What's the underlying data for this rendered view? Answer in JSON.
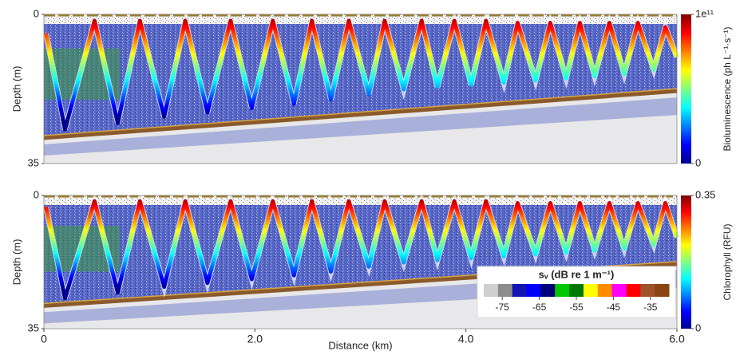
{
  "chart_data": [
    {
      "type": "echogram",
      "ylabel": "Depth (m)",
      "ylim": [
        0,
        35
      ],
      "yticks": [
        0,
        35
      ],
      "y_inverted": true,
      "xlim": [
        0,
        6
      ],
      "track": {
        "x": [
          0.02,
          0.2,
          0.48,
          0.7,
          0.91,
          1.14,
          1.34,
          1.55,
          1.77,
          1.97,
          2.17,
          2.37,
          2.54,
          2.72,
          2.89,
          3.08,
          3.23,
          3.41,
          3.58,
          3.73,
          3.89,
          4.05,
          4.19,
          4.36,
          4.49,
          4.66,
          4.8,
          4.95,
          5.08,
          5.22,
          5.36,
          5.5,
          5.63,
          5.78,
          5.89,
          6.0
        ],
        "depth": [
          4.5,
          27,
          1.5,
          25.5,
          1.5,
          24,
          1.5,
          23,
          1.5,
          22,
          1.5,
          21,
          1.5,
          20,
          1.5,
          18.7,
          1.5,
          17.6,
          1.5,
          17,
          1.5,
          16.5,
          1.5,
          16,
          2,
          15.5,
          2,
          15,
          2,
          14.5,
          2,
          14,
          2,
          13,
          3,
          10
        ]
      },
      "seafloor": {
        "x": [
          0,
          6
        ],
        "depth": [
          29,
          18
        ]
      },
      "colorbar": {
        "label": "Bioluminescence (ph L⁻¹·s⁻¹)",
        "lim": [
          0,
          100000000000
        ],
        "ticks": [
          0,
          {
            "value": 100000000000,
            "label": "1e¹¹"
          }
        ],
        "colors": [
          "#00008f",
          "#0000ff",
          "#0080ff",
          "#00ffff",
          "#80ff80",
          "#ffff00",
          "#ff8000",
          "#ff0000",
          "#800000"
        ]
      }
    },
    {
      "type": "echogram",
      "ylabel": "Depth (m)",
      "ylim": [
        0,
        35
      ],
      "yticks": [
        0,
        35
      ],
      "y_inverted": true,
      "xlim": [
        0,
        6
      ],
      "xlabel": "Distance (km)",
      "xticks": [
        0,
        {
          "value": 2,
          "label": "2.0"
        },
        {
          "value": 4,
          "label": "4.0"
        },
        {
          "value": 6,
          "label": "6.0"
        }
      ],
      "track": {
        "x": [
          0.02,
          0.2,
          0.48,
          0.7,
          0.91,
          1.14,
          1.34,
          1.55,
          1.77,
          1.97,
          2.17,
          2.37,
          2.54,
          2.72,
          2.89,
          3.08,
          3.23,
          3.41,
          3.58,
          3.73,
          3.89,
          4.05,
          4.19,
          4.36,
          4.49,
          4.66,
          4.8,
          4.95,
          5.08,
          5.22,
          5.36,
          5.5,
          5.63,
          5.78,
          5.89,
          6.0
        ],
        "depth": [
          3,
          27,
          1.5,
          25.5,
          1.5,
          24,
          1.5,
          23,
          1.5,
          22,
          1.5,
          21,
          1.5,
          20,
          1.5,
          18.7,
          1.5,
          17.6,
          1.5,
          17,
          1.5,
          16.5,
          1.5,
          16,
          2,
          15.5,
          2,
          15,
          2,
          14.5,
          2,
          14,
          2,
          13,
          2,
          11
        ]
      },
      "seafloor": {
        "x": [
          0,
          6
        ],
        "depth": [
          29,
          18
        ]
      },
      "colorbar": {
        "label": "Chlorophyll (RFU)",
        "lim": [
          0,
          0.35
        ],
        "ticks": [
          0,
          0.35
        ],
        "colors": [
          "#00008f",
          "#0000ff",
          "#0080ff",
          "#00ffff",
          "#80ff80",
          "#ffff00",
          "#ff8000",
          "#ff0000",
          "#800000"
        ]
      },
      "legend": {
        "title": "sᵥ (dB re 1 m⁻¹)",
        "lim": [
          -80,
          -30
        ],
        "ticks": [
          -75,
          -65,
          -55,
          -45,
          -35
        ],
        "colors": [
          "#cfcfcf",
          "#8c8c8c",
          "#1414b4",
          "#0000ff",
          "#000078",
          "#00c800",
          "#007800",
          "#ffff00",
          "#ff8c00",
          "#ff00ff",
          "#ff0000",
          "#a0522d",
          "#8b4513"
        ]
      }
    }
  ]
}
